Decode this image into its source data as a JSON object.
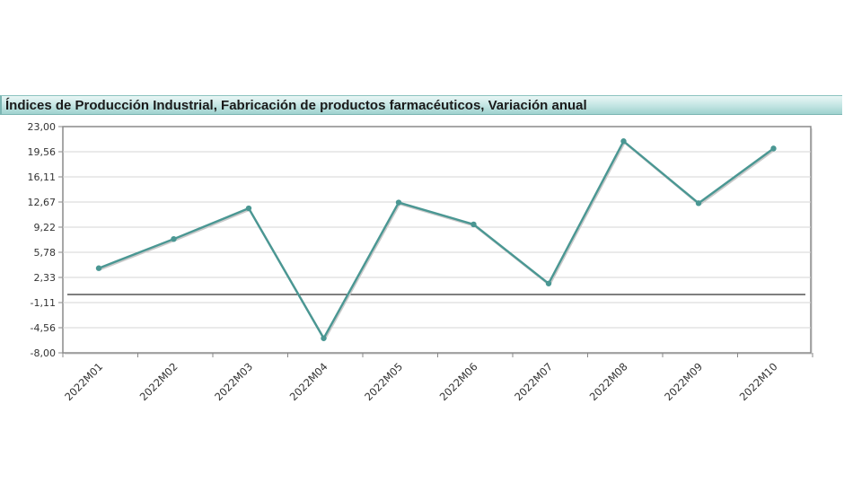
{
  "chart_data": {
    "type": "line",
    "title": "Índices de Producción Industrial, Fabricación de productos farmacéuticos, Variación anual",
    "categories": [
      "2022M01",
      "2022M02",
      "2022M03",
      "2022M04",
      "2022M05",
      "2022M06",
      "2022M07",
      "2022M08",
      "2022M09",
      "2022M10"
    ],
    "series": [
      {
        "values": [
          3.6,
          7.6,
          11.8,
          -6.0,
          12.6,
          9.6,
          1.5,
          21.0,
          12.5,
          20.0
        ]
      }
    ],
    "ylim": [
      -8.0,
      23.0
    ],
    "yticks": [
      "23,00",
      "19,56",
      "16,11",
      "12,67",
      "9,22",
      "5,78",
      "2,33",
      "-1,11",
      "-4,56",
      "-8,00"
    ],
    "reference_line": 0,
    "grid": true,
    "colors": {
      "line": "#4a9793",
      "marker": "#4a9793",
      "zero_line": "#333333",
      "grid": "#d6d6d6",
      "frame": "#8a8a8a"
    }
  }
}
